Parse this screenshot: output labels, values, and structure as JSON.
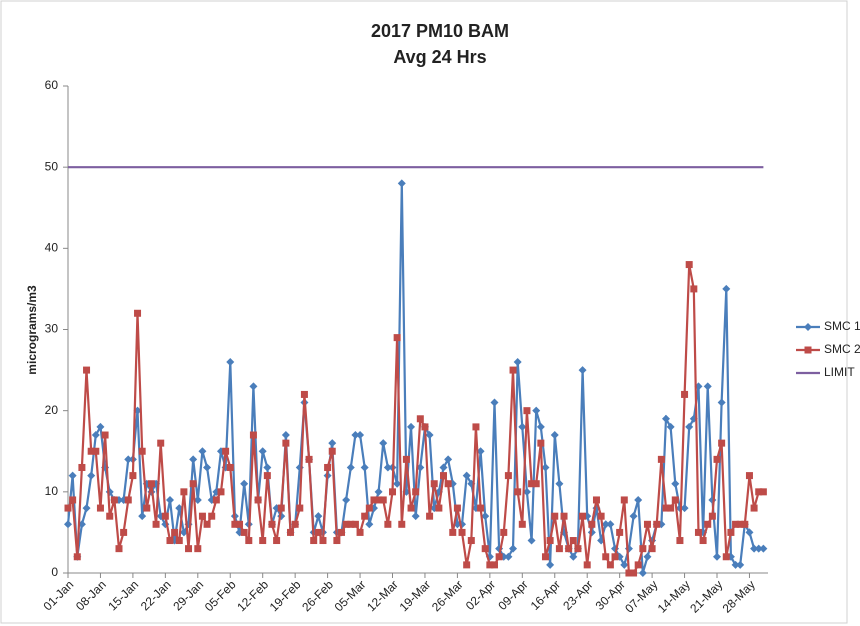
{
  "chart_data": {
    "type": "line",
    "title": "2017 PM10 BAM",
    "subtitle": "Avg 24 Hrs",
    "y_label": "micrograms/m3",
    "categories": [
      "01-Jan",
      null,
      null,
      null,
      null,
      null,
      null,
      "08-Jan",
      null,
      null,
      null,
      null,
      null,
      null,
      "15-Jan",
      null,
      null,
      null,
      null,
      null,
      null,
      "22-Jan",
      null,
      null,
      null,
      null,
      null,
      null,
      "29-Jan",
      null,
      null,
      null,
      null,
      null,
      null,
      "05-Feb",
      null,
      null,
      null,
      null,
      null,
      null,
      "12-Feb",
      null,
      null,
      null,
      null,
      null,
      null,
      "19-Feb",
      null,
      null,
      null,
      null,
      null,
      null,
      "26-Feb",
      null,
      null,
      null,
      null,
      null,
      null,
      "05-Mar",
      null,
      null,
      null,
      null,
      null,
      null,
      "12-Mar",
      null,
      null,
      null,
      null,
      null,
      null,
      "19-Mar",
      null,
      null,
      null,
      null,
      null,
      null,
      "26-Mar",
      null,
      null,
      null,
      null,
      null,
      null,
      "02-Apr",
      null,
      null,
      null,
      null,
      null,
      null,
      "09-Apr",
      null,
      null,
      null,
      null,
      null,
      null,
      "16-Apr",
      null,
      null,
      null,
      null,
      null,
      null,
      "23-Apr",
      null,
      null,
      null,
      null,
      null,
      null,
      "30-Apr",
      null,
      null,
      null,
      null,
      null,
      null,
      "07-May",
      null,
      null,
      null,
      null,
      null,
      null,
      "14-May",
      null,
      null,
      null,
      null,
      null,
      null,
      "21-May",
      null,
      null,
      null,
      null,
      null,
      null,
      "28-May",
      null,
      null,
      null
    ],
    "series": [
      {
        "name": "SMC 1",
        "color": "#4a7ebb",
        "marker": "diamond",
        "values": [
          6,
          12,
          2,
          6,
          8,
          12,
          17,
          18,
          13,
          10,
          9,
          9,
          9,
          14,
          14,
          20,
          7,
          11,
          10,
          11,
          7,
          6,
          9,
          4,
          8,
          5,
          6,
          14,
          9,
          15,
          13,
          9,
          10,
          15,
          13,
          26,
          7,
          5,
          11,
          6,
          23,
          9,
          15,
          13,
          6,
          8,
          7,
          17,
          5,
          6,
          13,
          21,
          14,
          5,
          7,
          5,
          12,
          16,
          5,
          5,
          9,
          13,
          17,
          17,
          13,
          6,
          8,
          10,
          16,
          13,
          13,
          11,
          48,
          10,
          18,
          7,
          13,
          18,
          17,
          8,
          10,
          13,
          14,
          11,
          6,
          6,
          12,
          11,
          8,
          15,
          7,
          2,
          21,
          3,
          2,
          2,
          3,
          26,
          18,
          10,
          4,
          20,
          18,
          13,
          1,
          17,
          11,
          5,
          3,
          2,
          3,
          25,
          7,
          5,
          8,
          4,
          6,
          6,
          3,
          2,
          1,
          3,
          7,
          9,
          0,
          2,
          4,
          6,
          6,
          19,
          18,
          11,
          8,
          8,
          18,
          19,
          23,
          5,
          23,
          9,
          2,
          21,
          35,
          2,
          1,
          1,
          6,
          5,
          3,
          3,
          3
        ]
      },
      {
        "name": "SMC 2",
        "color": "#be4b48",
        "marker": "square",
        "values": [
          8,
          9,
          2,
          13,
          25,
          15,
          15,
          8,
          17,
          7,
          9,
          3,
          5,
          9,
          12,
          32,
          15,
          8,
          11,
          6,
          16,
          7,
          4,
          5,
          4,
          10,
          3,
          11,
          3,
          7,
          6,
          7,
          9,
          10,
          15,
          13,
          6,
          6,
          5,
          4,
          17,
          9,
          4,
          12,
          6,
          4,
          8,
          16,
          5,
          6,
          8,
          22,
          14,
          4,
          5,
          4,
          13,
          15,
          4,
          5,
          6,
          6,
          6,
          5,
          7,
          8,
          9,
          9,
          9,
          6,
          10,
          29,
          6,
          14,
          8,
          10,
          19,
          18,
          7,
          11,
          8,
          12,
          11,
          5,
          8,
          5,
          1,
          4,
          18,
          8,
          3,
          1,
          1,
          2,
          5,
          12,
          25,
          10,
          6,
          20,
          11,
          11,
          16,
          2,
          4,
          7,
          3,
          7,
          3,
          4,
          3,
          7,
          1,
          6,
          9,
          7,
          2,
          1,
          2,
          5,
          9,
          0,
          0,
          1,
          3,
          6,
          3,
          6,
          14,
          8,
          8,
          9,
          4,
          22,
          38,
          35,
          5,
          4,
          6,
          7,
          14,
          16,
          2,
          5,
          6,
          6,
          6,
          12,
          8,
          10,
          10
        ]
      },
      {
        "name": "LIMIT",
        "color": "#7d5fa0",
        "marker": null,
        "values": [
          50,
          50,
          50,
          50,
          50,
          50,
          50,
          50,
          50,
          50,
          50,
          50,
          50,
          50,
          50,
          50,
          50,
          50,
          50,
          50,
          50,
          50,
          50,
          50,
          50,
          50,
          50,
          50,
          50,
          50,
          50,
          50,
          50,
          50,
          50,
          50,
          50,
          50,
          50,
          50,
          50,
          50,
          50,
          50,
          50,
          50,
          50,
          50,
          50,
          50,
          50,
          50,
          50,
          50,
          50,
          50,
          50,
          50,
          50,
          50,
          50,
          50,
          50,
          50,
          50,
          50,
          50,
          50,
          50,
          50,
          50,
          50,
          50,
          50,
          50,
          50,
          50,
          50,
          50,
          50,
          50,
          50,
          50,
          50,
          50,
          50,
          50,
          50,
          50,
          50,
          50,
          50,
          50,
          50,
          50,
          50,
          50,
          50,
          50,
          50,
          50,
          50,
          50,
          50,
          50,
          50,
          50,
          50,
          50,
          50,
          50,
          50,
          50,
          50,
          50,
          50,
          50,
          50,
          50,
          50,
          50,
          50,
          50,
          50,
          50,
          50,
          50,
          50,
          50,
          50,
          50,
          50,
          50,
          50,
          50,
          50,
          50,
          50,
          50,
          50,
          50,
          50,
          50,
          50,
          50,
          50,
          50,
          50,
          50,
          50,
          50
        ]
      }
    ],
    "ylim": [
      0,
      60
    ],
    "yticks": [
      0,
      10,
      20,
      30,
      40,
      50,
      60
    ],
    "grid": false,
    "legend": "right"
  }
}
